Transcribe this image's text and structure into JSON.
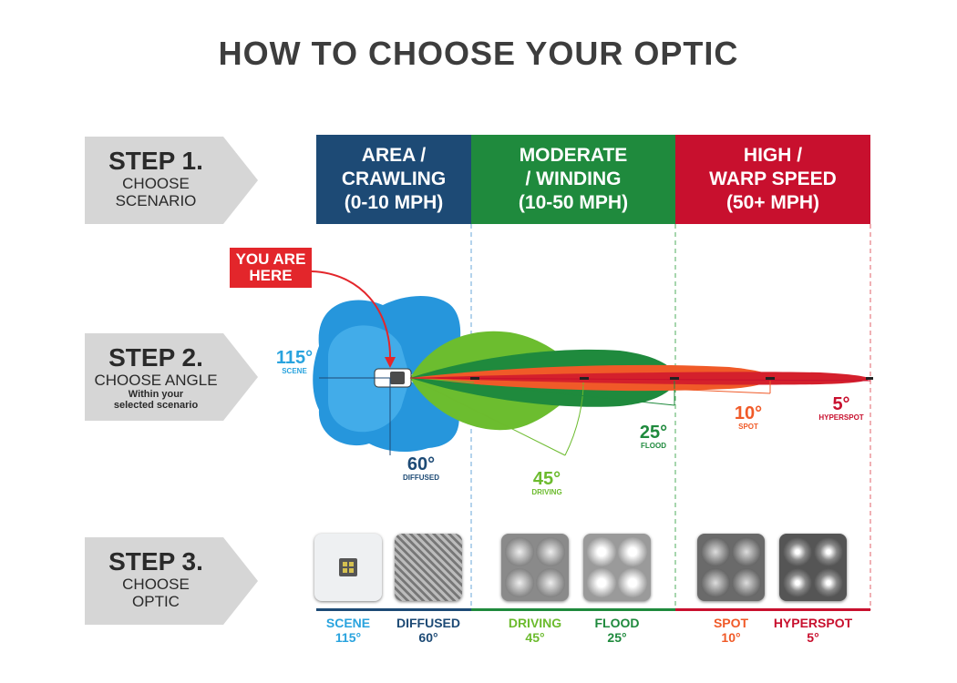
{
  "title": "HOW TO CHOOSE YOUR OPTIC",
  "steps": [
    {
      "big": "STEP 1.",
      "l1": "CHOOSE",
      "l2": "SCENARIO"
    },
    {
      "big": "STEP 2.",
      "l1": "CHOOSE ANGLE",
      "l2": "Within your",
      "l3": "selected scenario"
    },
    {
      "big": "STEP 3.",
      "l1": "CHOOSE",
      "l2": "OPTIC"
    }
  ],
  "scenarios": [
    {
      "l1": "AREA /",
      "l2": "CRAWLING",
      "l3": "(0-10 MPH)",
      "color": "#1d4a75"
    },
    {
      "l1": "MODERATE",
      "l2": "/ WINDING",
      "l3": "(10-50 MPH)",
      "color": "#1f8a3d"
    },
    {
      "l1": "HIGH /",
      "l2": "WARP SPEED",
      "l3": "(50+ MPH)",
      "color": "#c8102e"
    }
  ],
  "you_are_here": {
    "l1": "YOU ARE",
    "l2": "HERE"
  },
  "angles": [
    {
      "deg": "115°",
      "name": "SCENE",
      "color": "#29a3de"
    },
    {
      "deg": "60°",
      "name": "DIFFUSED",
      "color": "#1d4a75"
    },
    {
      "deg": "45°",
      "name": "DRIVING",
      "color": "#6cbb2e"
    },
    {
      "deg": "25°",
      "name": "FLOOD",
      "color": "#1f8a3d"
    },
    {
      "deg": "10°",
      "name": "SPOT",
      "color": "#f05a28"
    },
    {
      "deg": "5°",
      "name": "HYPERSPOT",
      "color": "#c8102e"
    }
  ],
  "optics": [
    {
      "name": "SCENE",
      "deg": "115°",
      "color": "#29a3de",
      "icon": "scene-optic-icon"
    },
    {
      "name": "DIFFUSED",
      "deg": "60°",
      "color": "#1d4a75",
      "icon": "diffused-optic-icon"
    },
    {
      "name": "DRIVING",
      "deg": "45°",
      "color": "#6cbb2e",
      "icon": "driving-optic-icon"
    },
    {
      "name": "FLOOD",
      "deg": "25°",
      "color": "#1f8a3d",
      "icon": "flood-optic-icon"
    },
    {
      "name": "SPOT",
      "deg": "10°",
      "color": "#f05a28",
      "icon": "spot-optic-icon"
    },
    {
      "name": "HYPERSPOT",
      "deg": "5°",
      "color": "#c8102e",
      "icon": "hyperspot-optic-icon"
    }
  ]
}
